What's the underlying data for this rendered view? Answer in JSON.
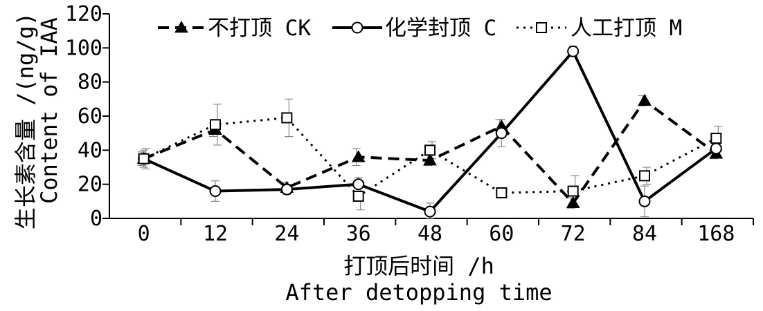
{
  "chart_data": {
    "type": "line",
    "categories": [
      "0",
      "12",
      "24",
      "36",
      "48",
      "60",
      "72",
      "84",
      "168"
    ],
    "ylim": [
      0,
      120
    ],
    "yticks": [
      0,
      20,
      40,
      60,
      80,
      100,
      120
    ],
    "ylabel_cn": "生长素含量 /(ng/g)",
    "ylabel_en": "Content of IAA",
    "xlabel_cn": "打顶后时间 /h",
    "xlabel_en": "After detopping time",
    "legend_position": "top",
    "grid": false,
    "series": [
      {
        "name": "不打顶 CK",
        "marker": "triangle-filled",
        "line_style": "dashed",
        "color": "#000000",
        "values": [
          35,
          52,
          18,
          36,
          34,
          54,
          9,
          69,
          38
        ],
        "errors": [
          4,
          4,
          3,
          5,
          3,
          4,
          3,
          3,
          3
        ]
      },
      {
        "name": "化学封顶 C",
        "marker": "circle-open",
        "line_style": "solid",
        "color": "#000000",
        "values": [
          35,
          16,
          17,
          20,
          4,
          50,
          98,
          10,
          41
        ],
        "errors": [
          5,
          6,
          3,
          4,
          5,
          8,
          3,
          9,
          4
        ]
      },
      {
        "name": "人工打顶 M",
        "marker": "square-open",
        "line_style": "dotted",
        "color": "#000000",
        "values": [
          35,
          55,
          59,
          13,
          40,
          15,
          16,
          25,
          47
        ],
        "errors": [
          6,
          12,
          11,
          8,
          5,
          2,
          9,
          5,
          7
        ]
      }
    ]
  }
}
